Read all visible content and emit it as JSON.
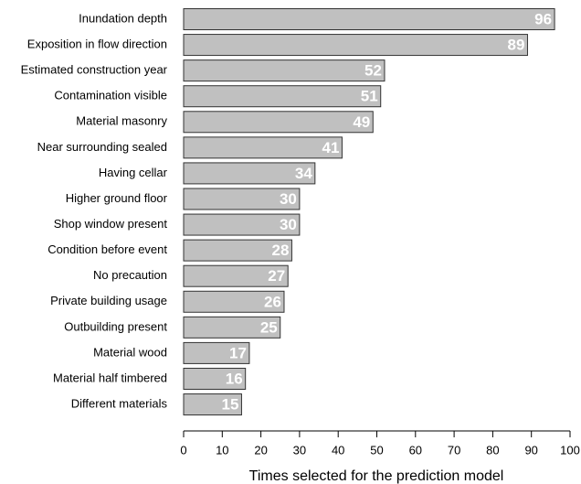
{
  "chart_data": {
    "type": "bar",
    "orientation": "horizontal",
    "xlabel": "Times selected for the prediction model",
    "categories": [
      "Inundation depth",
      "Exposition in flow direction",
      "Estimated construction year",
      "Contamination visible",
      "Material masonry",
      "Near surrounding sealed",
      "Having cellar",
      "Higher ground floor",
      "Shop window present",
      "Condition before event",
      "No precaution",
      "Private building usage",
      "Outbuilding present",
      "Material wood",
      "Material half timbered",
      "Different materials"
    ],
    "values": [
      96,
      89,
      52,
      51,
      49,
      41,
      34,
      30,
      30,
      28,
      27,
      26,
      25,
      17,
      16,
      15
    ],
    "color": "#c0c0c0",
    "xlim": [
      0,
      100
    ],
    "xticks": [
      0,
      10,
      20,
      30,
      40,
      50,
      60,
      70,
      80,
      90,
      100
    ],
    "grid": false
  }
}
